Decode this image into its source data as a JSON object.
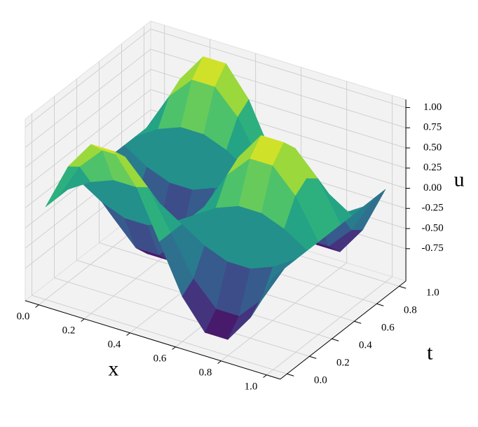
{
  "chart_data": {
    "type": "surface",
    "xlabel": "x",
    "ylabel": "t",
    "zlabel": "u",
    "x": [
      0,
      0.1,
      0.2,
      0.3,
      0.4,
      0.5,
      0.6,
      0.7,
      0.8,
      0.9,
      1
    ],
    "y": [
      0,
      0.1,
      0.2,
      0.3,
      0.4,
      0.5,
      0.6,
      0.7,
      0.8,
      0.9,
      1
    ],
    "z": [
      [
        0,
        0.59,
        0.95,
        0.95,
        0.59,
        0,
        -0.59,
        -0.95,
        -0.95,
        -0.59,
        0
      ],
      [
        0,
        0.48,
        0.77,
        0.77,
        0.48,
        0,
        -0.48,
        -0.77,
        -0.77,
        -0.48,
        0
      ],
      [
        0,
        0.18,
        0.29,
        0.29,
        0.18,
        0,
        -0.18,
        -0.29,
        -0.29,
        -0.18,
        0
      ],
      [
        0,
        -0.18,
        -0.29,
        -0.29,
        -0.18,
        0,
        0.18,
        0.29,
        0.29,
        0.18,
        0
      ],
      [
        0,
        -0.48,
        -0.77,
        -0.77,
        -0.48,
        0,
        0.48,
        0.77,
        0.77,
        0.48,
        0
      ],
      [
        0,
        -0.59,
        -0.95,
        -0.95,
        -0.59,
        0,
        0.59,
        0.95,
        0.95,
        0.59,
        0
      ],
      [
        0,
        -0.48,
        -0.77,
        -0.77,
        -0.48,
        0,
        0.48,
        0.77,
        0.77,
        0.48,
        0
      ],
      [
        0,
        -0.18,
        -0.29,
        -0.29,
        -0.18,
        0,
        0.18,
        0.29,
        0.29,
        0.18,
        0
      ],
      [
        0,
        0.18,
        0.29,
        0.29,
        0.18,
        0,
        -0.18,
        -0.29,
        -0.29,
        -0.18,
        0
      ],
      [
        0,
        0.48,
        0.77,
        0.77,
        0.48,
        0,
        -0.48,
        -0.77,
        -0.77,
        -0.48,
        0
      ],
      [
        0,
        0.59,
        0.95,
        0.95,
        0.59,
        0,
        -0.59,
        -0.95,
        -0.95,
        -0.59,
        0
      ]
    ],
    "colormap": "viridis",
    "xlim": [
      0,
      1
    ],
    "ylim": [
      0,
      1
    ],
    "zlim": [
      -1,
      1
    ],
    "xticks": [
      {
        "value": 0,
        "label": "0.0"
      },
      {
        "value": 0.2,
        "label": "0.2"
      },
      {
        "value": 0.4,
        "label": "0.4"
      },
      {
        "value": 0.6,
        "label": "0.6"
      },
      {
        "value": 0.8,
        "label": "0.8"
      },
      {
        "value": 1,
        "label": "1.0"
      }
    ],
    "yticks": [
      {
        "value": 0,
        "label": "0.0"
      },
      {
        "value": 0.2,
        "label": "0.2"
      },
      {
        "value": 0.4,
        "label": "0.4"
      },
      {
        "value": 0.6,
        "label": "0.6"
      },
      {
        "value": 0.8,
        "label": "0.8"
      },
      {
        "value": 1,
        "label": "1.0"
      }
    ],
    "zticks": [
      {
        "value": -0.75,
        "label": "-0.75"
      },
      {
        "value": -0.5,
        "label": "-0.50"
      },
      {
        "value": -0.25,
        "label": "-0.25"
      },
      {
        "value": 0,
        "label": "0.00"
      },
      {
        "value": 0.25,
        "label": "0.25"
      },
      {
        "value": 0.5,
        "label": "0.50"
      },
      {
        "value": 0.75,
        "label": "0.75"
      },
      {
        "value": 1,
        "label": "1.00"
      }
    ],
    "grid": true
  }
}
